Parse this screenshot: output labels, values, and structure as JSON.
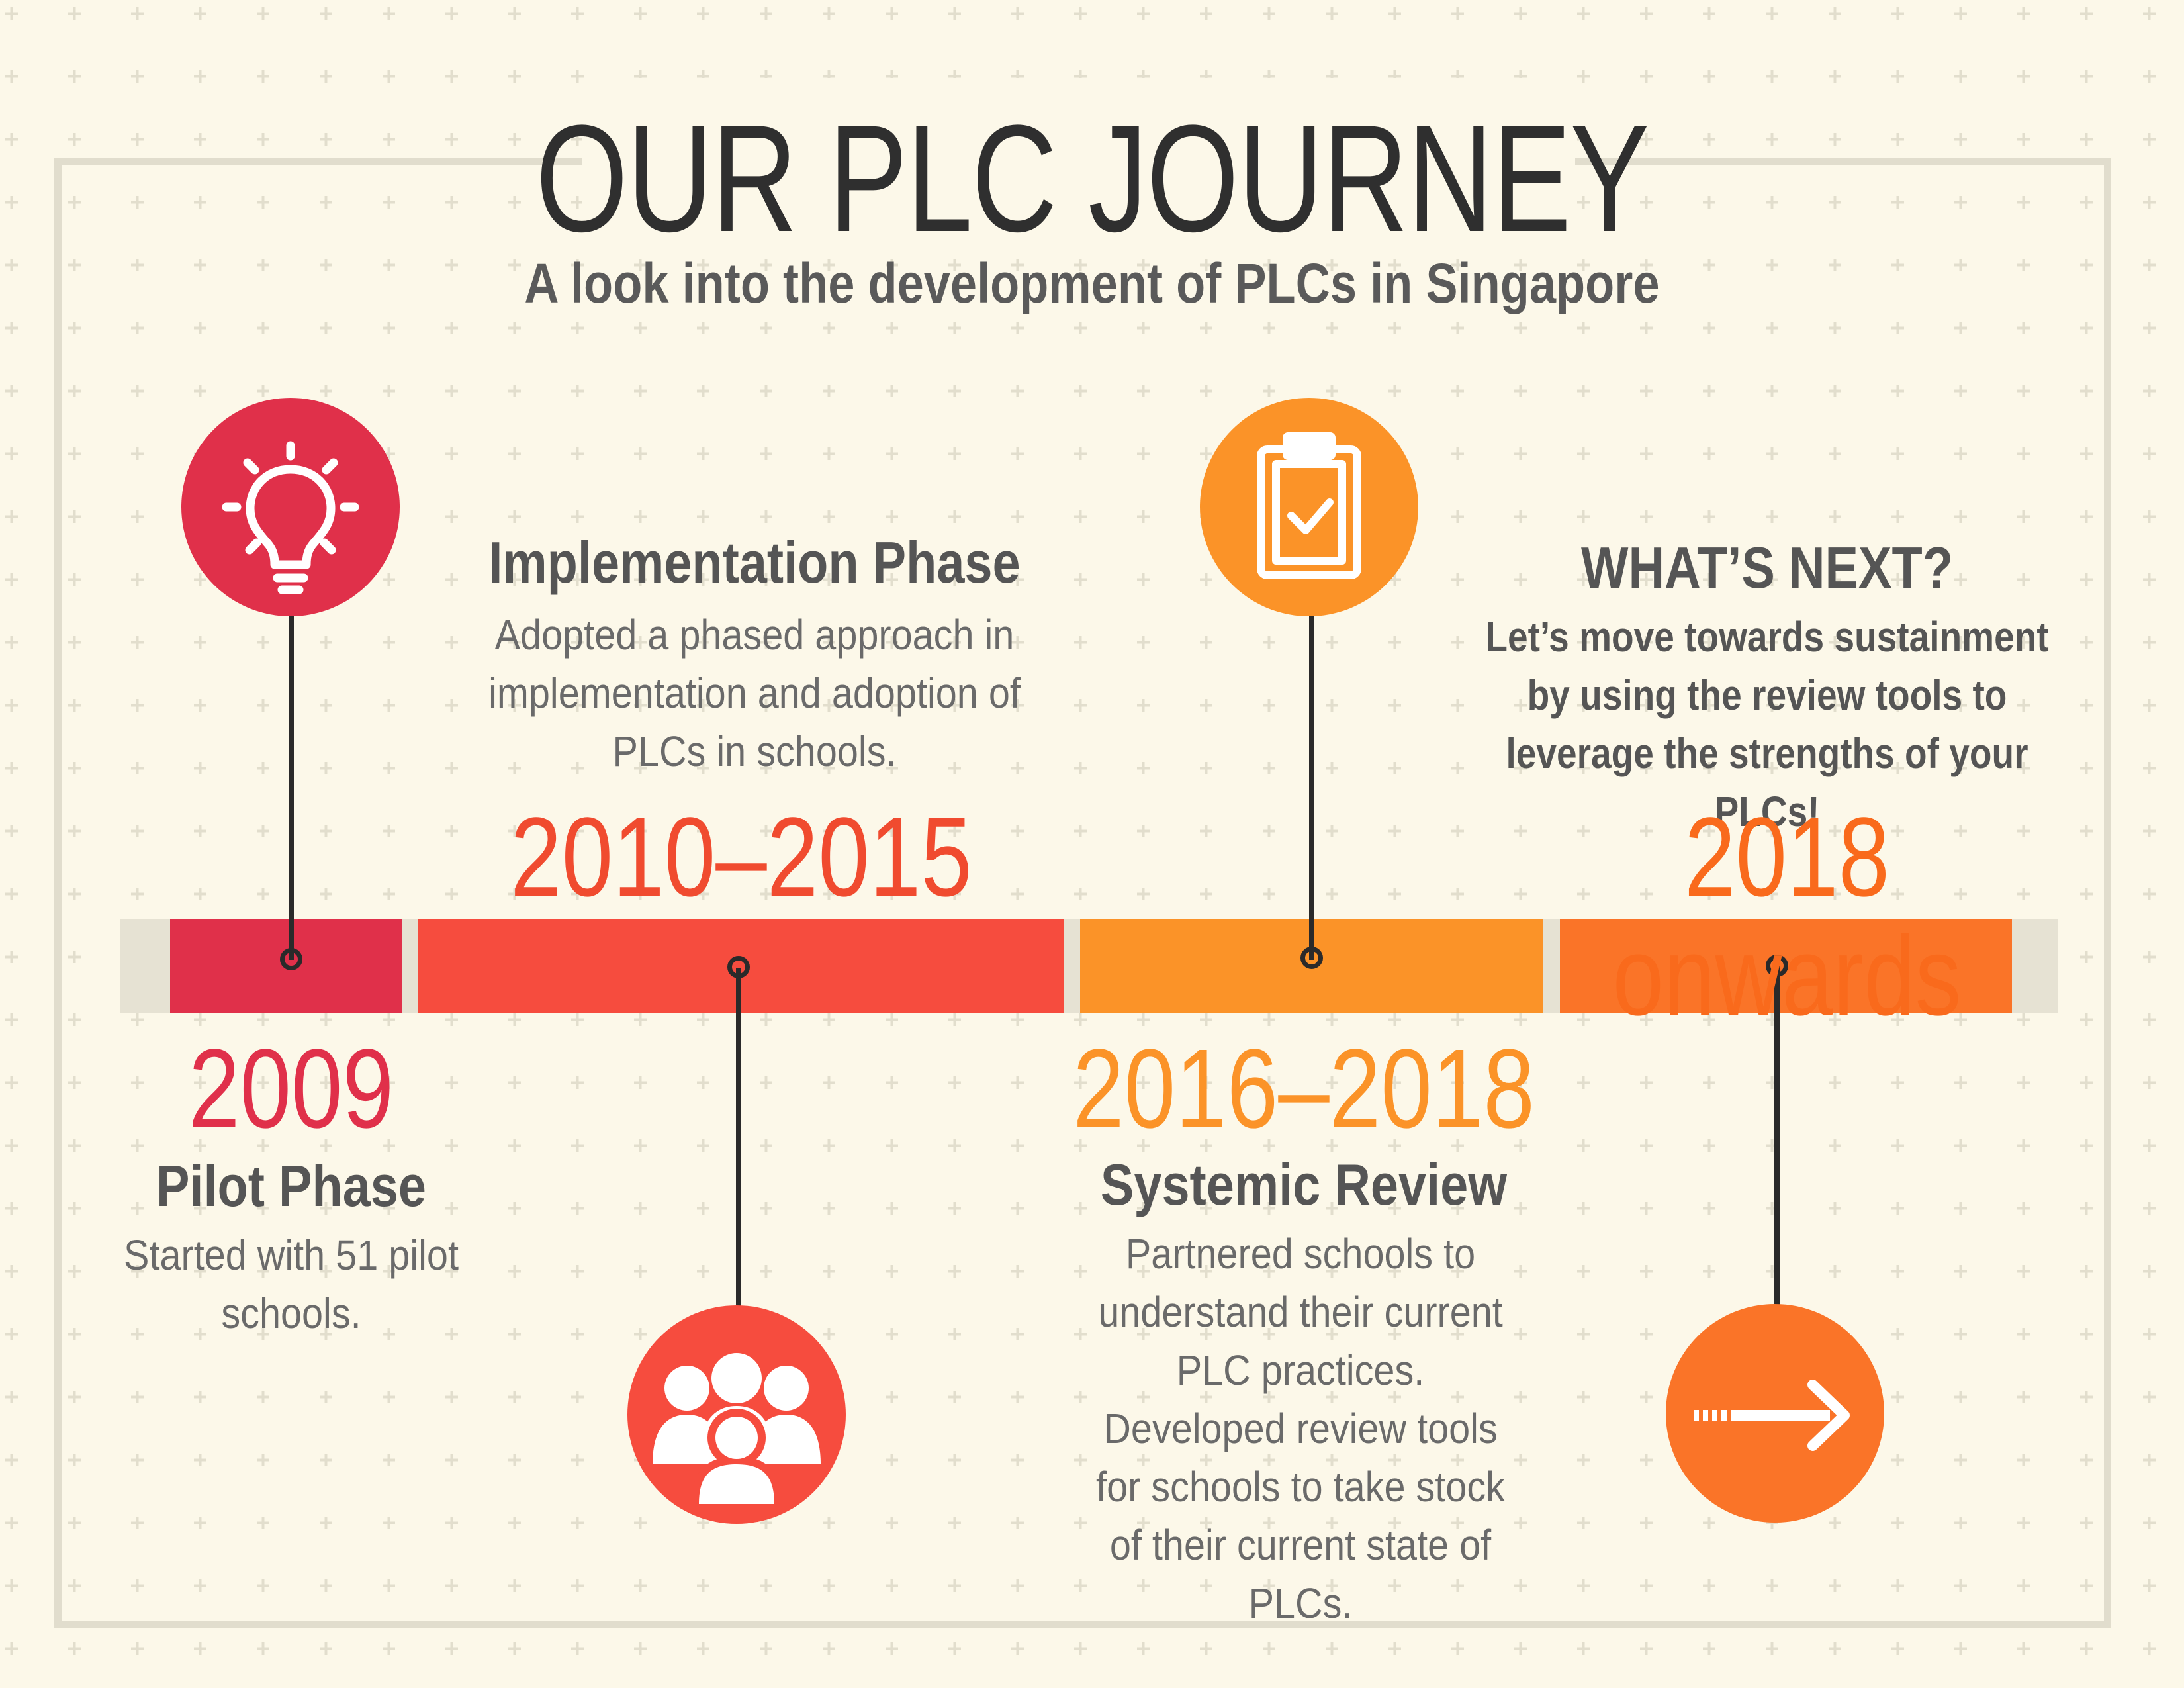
{
  "header": {
    "title": "OUR PLC JOURNEY",
    "subtitle": "A look into the development of PLCs in Singapore"
  },
  "colors": {
    "background": "#fcf8e9",
    "pilot": "#e0304a",
    "implementation": "#f64c3e",
    "review": "#fb9328",
    "next": "#fa7428",
    "text_dark": "#2f2f2f",
    "text_gray": "#5a5a5a"
  },
  "phases": [
    {
      "year": "2009",
      "title": "Pilot Phase",
      "description": "Started with 51 pilot schools.",
      "icon": "lightbulb-icon"
    },
    {
      "year": "2010–2015",
      "title": "Implementation Phase",
      "description": "Adopted a phased approach in implementation and adoption of PLCs in schools.",
      "icon": "group-icon"
    },
    {
      "year": "2016–2018",
      "title": "Systemic Review",
      "description": "Partnered schools to understand their current PLC practices. Developed review tools for schools to take stock of their current state of PLCs.",
      "icon": "clipboard-check-icon"
    },
    {
      "year": "2018 onwards",
      "title": "WHAT’S NEXT?",
      "description": "Let’s move towards sustainment by using the review tools to leverage the strengths of your PLCs!",
      "icon": "arrow-right-icon"
    }
  ]
}
